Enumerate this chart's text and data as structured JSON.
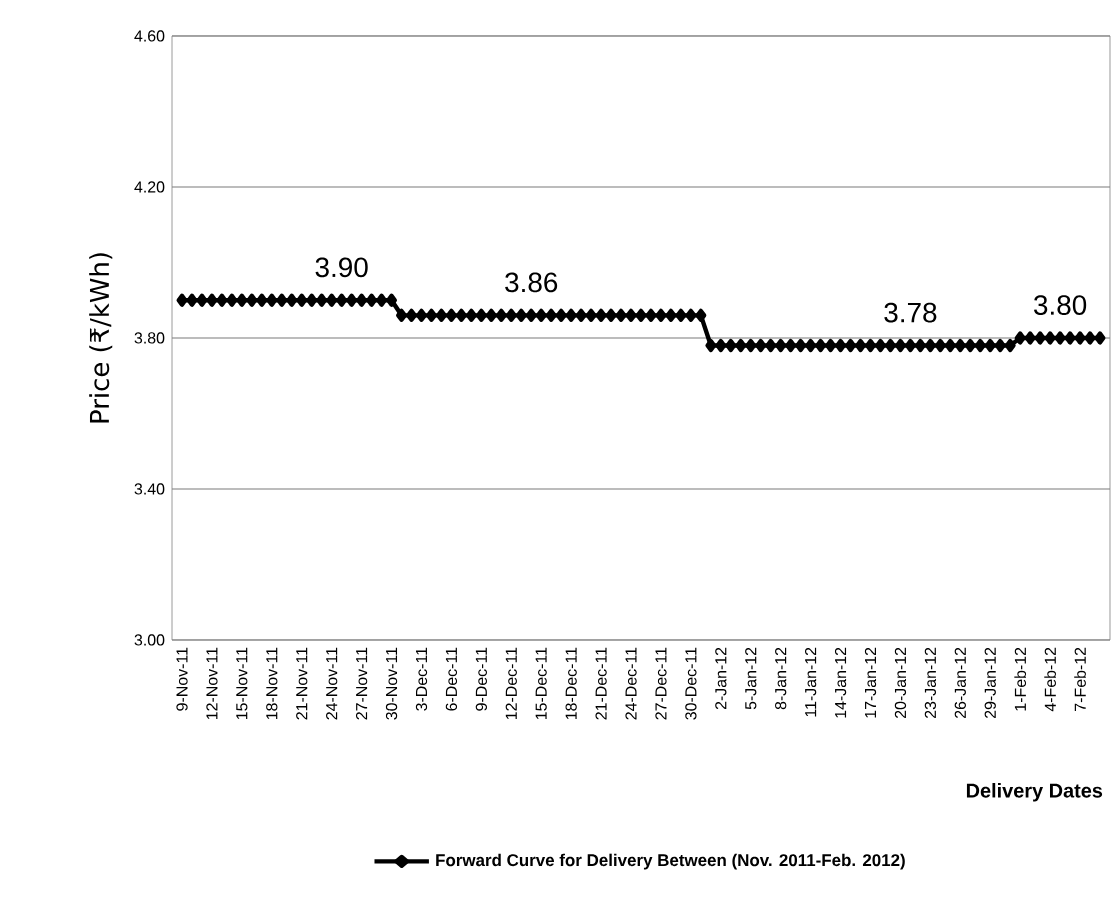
{
  "chart_data": {
    "type": "line",
    "xlabel": "Delivery Dates",
    "ylabel": "Price (₹/kWh)",
    "x": [
      "2011-11-09",
      "2011-11-10",
      "2011-11-11",
      "2011-11-12",
      "2011-11-13",
      "2011-11-14",
      "2011-11-15",
      "2011-11-16",
      "2011-11-17",
      "2011-11-18",
      "2011-11-19",
      "2011-11-20",
      "2011-11-21",
      "2011-11-22",
      "2011-11-23",
      "2011-11-24",
      "2011-11-25",
      "2011-11-26",
      "2011-11-27",
      "2011-11-28",
      "2011-11-29",
      "2011-11-30",
      "2011-12-01",
      "2011-12-02",
      "2011-12-03",
      "2011-12-04",
      "2011-12-05",
      "2011-12-06",
      "2011-12-07",
      "2011-12-08",
      "2011-12-09",
      "2011-12-10",
      "2011-12-11",
      "2011-12-12",
      "2011-12-13",
      "2011-12-14",
      "2011-12-15",
      "2011-12-16",
      "2011-12-17",
      "2011-12-18",
      "2011-12-19",
      "2011-12-20",
      "2011-12-21",
      "2011-12-22",
      "2011-12-23",
      "2011-12-24",
      "2011-12-25",
      "2011-12-26",
      "2011-12-27",
      "2011-12-28",
      "2011-12-29",
      "2011-12-30",
      "2011-12-31",
      "2012-01-01",
      "2012-01-02",
      "2012-01-03",
      "2012-01-04",
      "2012-01-05",
      "2012-01-06",
      "2012-01-07",
      "2012-01-08",
      "2012-01-09",
      "2012-01-10",
      "2012-01-11",
      "2012-01-12",
      "2012-01-13",
      "2012-01-14",
      "2012-01-15",
      "2012-01-16",
      "2012-01-17",
      "2012-01-18",
      "2012-01-19",
      "2012-01-20",
      "2012-01-21",
      "2012-01-22",
      "2012-01-23",
      "2012-01-24",
      "2012-01-25",
      "2012-01-26",
      "2012-01-27",
      "2012-01-28",
      "2012-01-29",
      "2012-01-30",
      "2012-01-31",
      "2012-02-01",
      "2012-02-02",
      "2012-02-03",
      "2012-02-04",
      "2012-02-05",
      "2012-02-06",
      "2012-02-07",
      "2012-02-08",
      "2012-02-09"
    ],
    "series": [
      {
        "name": "Forward Curve for Delivery Between (Nov. 2011-Feb. 2012)",
        "color": "#000000",
        "values": [
          3.9,
          3.9,
          3.9,
          3.9,
          3.9,
          3.9,
          3.9,
          3.9,
          3.9,
          3.9,
          3.9,
          3.9,
          3.9,
          3.9,
          3.9,
          3.9,
          3.9,
          3.9,
          3.9,
          3.9,
          3.9,
          3.9,
          3.86,
          3.86,
          3.86,
          3.86,
          3.86,
          3.86,
          3.86,
          3.86,
          3.86,
          3.86,
          3.86,
          3.86,
          3.86,
          3.86,
          3.86,
          3.86,
          3.86,
          3.86,
          3.86,
          3.86,
          3.86,
          3.86,
          3.86,
          3.86,
          3.86,
          3.86,
          3.86,
          3.86,
          3.86,
          3.86,
          3.86,
          3.78,
          3.78,
          3.78,
          3.78,
          3.78,
          3.78,
          3.78,
          3.78,
          3.78,
          3.78,
          3.78,
          3.78,
          3.78,
          3.78,
          3.78,
          3.78,
          3.78,
          3.78,
          3.78,
          3.78,
          3.78,
          3.78,
          3.78,
          3.78,
          3.78,
          3.78,
          3.78,
          3.78,
          3.78,
          3.78,
          3.78,
          3.8,
          3.8,
          3.8,
          3.8,
          3.8,
          3.8,
          3.8,
          3.8,
          3.8
        ]
      }
    ],
    "annotations": [
      {
        "text": "3.90",
        "x": "2011-11-25",
        "y": 3.9
      },
      {
        "text": "3.86",
        "x": "2011-12-14",
        "y": 3.86
      },
      {
        "text": "3.78",
        "x": "2012-01-21",
        "y": 3.78
      },
      {
        "text": "3.80",
        "x": "2012-02-05",
        "y": 3.8
      }
    ],
    "xlim": [
      "2011-11-08",
      "2012-02-10"
    ],
    "xticks": [
      {
        "value": "2011-11-09",
        "label": "9-Nov-11"
      },
      {
        "value": "2011-11-12",
        "label": "12-Nov-11"
      },
      {
        "value": "2011-11-15",
        "label": "15-Nov-11"
      },
      {
        "value": "2011-11-18",
        "label": "18-Nov-11"
      },
      {
        "value": "2011-11-21",
        "label": "21-Nov-11"
      },
      {
        "value": "2011-11-24",
        "label": "24-Nov-11"
      },
      {
        "value": "2011-11-27",
        "label": "27-Nov-11"
      },
      {
        "value": "2011-11-30",
        "label": "30-Nov-11"
      },
      {
        "value": "2011-12-03",
        "label": "3-Dec-11"
      },
      {
        "value": "2011-12-06",
        "label": "6-Dec-11"
      },
      {
        "value": "2011-12-09",
        "label": "9-Dec-11"
      },
      {
        "value": "2011-12-12",
        "label": "12-Dec-11"
      },
      {
        "value": "2011-12-15",
        "label": "15-Dec-11"
      },
      {
        "value": "2011-12-18",
        "label": "18-Dec-11"
      },
      {
        "value": "2011-12-21",
        "label": "21-Dec-11"
      },
      {
        "value": "2011-12-24",
        "label": "24-Dec-11"
      },
      {
        "value": "2011-12-27",
        "label": "27-Dec-11"
      },
      {
        "value": "2011-12-30",
        "label": "30-Dec-11"
      },
      {
        "value": "2012-01-02",
        "label": "2-Jan-12"
      },
      {
        "value": "2012-01-05",
        "label": "5-Jan-12"
      },
      {
        "value": "2012-01-08",
        "label": "8-Jan-12"
      },
      {
        "value": "2012-01-11",
        "label": "11-Jan-12"
      },
      {
        "value": "2012-01-14",
        "label": "14-Jan-12"
      },
      {
        "value": "2012-01-17",
        "label": "17-Jan-12"
      },
      {
        "value": "2012-01-20",
        "label": "20-Jan-12"
      },
      {
        "value": "2012-01-23",
        "label": "23-Jan-12"
      },
      {
        "value": "2012-01-26",
        "label": "26-Jan-12"
      },
      {
        "value": "2012-01-29",
        "label": "29-Jan-12"
      },
      {
        "value": "2012-02-01",
        "label": "1-Feb-12"
      },
      {
        "value": "2012-02-04",
        "label": "4-Feb-12"
      },
      {
        "value": "2012-02-07",
        "label": "7-Feb-12"
      }
    ],
    "ylim": [
      3.0,
      4.6
    ],
    "yticks": [
      {
        "value": 3.0,
        "label": "3.00"
      },
      {
        "value": 3.4,
        "label": "3.40"
      },
      {
        "value": 3.8,
        "label": "3.80"
      },
      {
        "value": 4.2,
        "label": "4.20"
      },
      {
        "value": 4.6,
        "label": "4.60"
      }
    ],
    "grid": "y",
    "legend": "bottom",
    "marker": "diamond",
    "line_style": "solid"
  }
}
